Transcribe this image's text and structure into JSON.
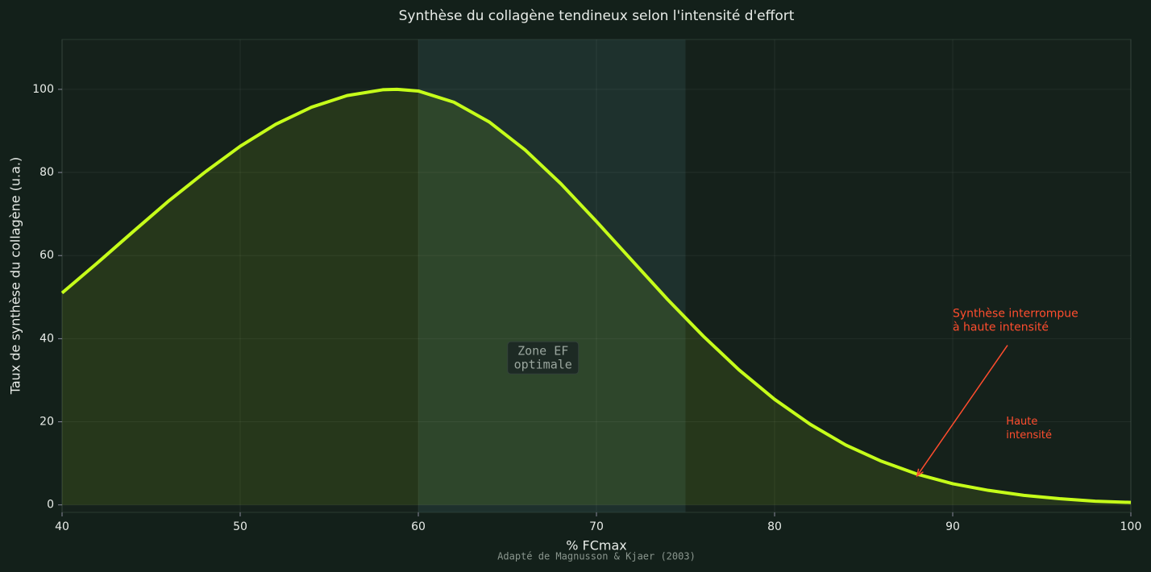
{
  "chart_data": {
    "type": "line",
    "title": "Synthèse du collagène tendineux selon l'intensité d'effort",
    "xlabel": "% FCmax",
    "ylabel": "Taux de synthèse du collagène (u.a.)",
    "footnote": "Adapté de Magnusson & Kjaer (2003)",
    "x": [
      40,
      42,
      44,
      46,
      48,
      50,
      52,
      54,
      56,
      58,
      58.8,
      60,
      62,
      64,
      66,
      68,
      70,
      72,
      74,
      76,
      78,
      80,
      82,
      84,
      86,
      88,
      90,
      92,
      94,
      96,
      98,
      100
    ],
    "values": [
      51.0,
      58.3,
      65.8,
      73.2,
      80.0,
      86.3,
      91.6,
      95.7,
      98.5,
      99.9,
      100,
      99.6,
      96.9,
      92.1,
      85.4,
      77.3,
      68.2,
      58.8,
      49.4,
      40.6,
      32.5,
      25.4,
      19.4,
      14.4,
      10.5,
      7.4,
      5.1,
      3.5,
      2.3,
      1.5,
      0.9,
      0.6
    ],
    "color": "#c6ff1a",
    "xlim": [
      40,
      100
    ],
    "xticks": [
      40,
      50,
      60,
      70,
      80,
      90,
      100
    ],
    "ylim": [
      -1.8,
      112
    ],
    "yticks": [
      0,
      20,
      40,
      60,
      80,
      100
    ],
    "grid": true,
    "shaded_span": {
      "x": [
        60,
        75
      ],
      "lines": [
        "Zone EF",
        "optimale"
      ],
      "label_xy": [
        67,
        35
      ]
    },
    "annotations": [
      {
        "lines": [
          "Synthèse interrompue",
          "à haute intensité"
        ],
        "xy": [
          88,
          7
        ],
        "xytext": [
          90,
          45
        ],
        "color": "#ff4d2e"
      },
      {
        "lines": [
          "Haute",
          "intensité"
        ],
        "xytext": [
          93,
          20
        ],
        "color": "#ff4d2e"
      }
    ]
  }
}
